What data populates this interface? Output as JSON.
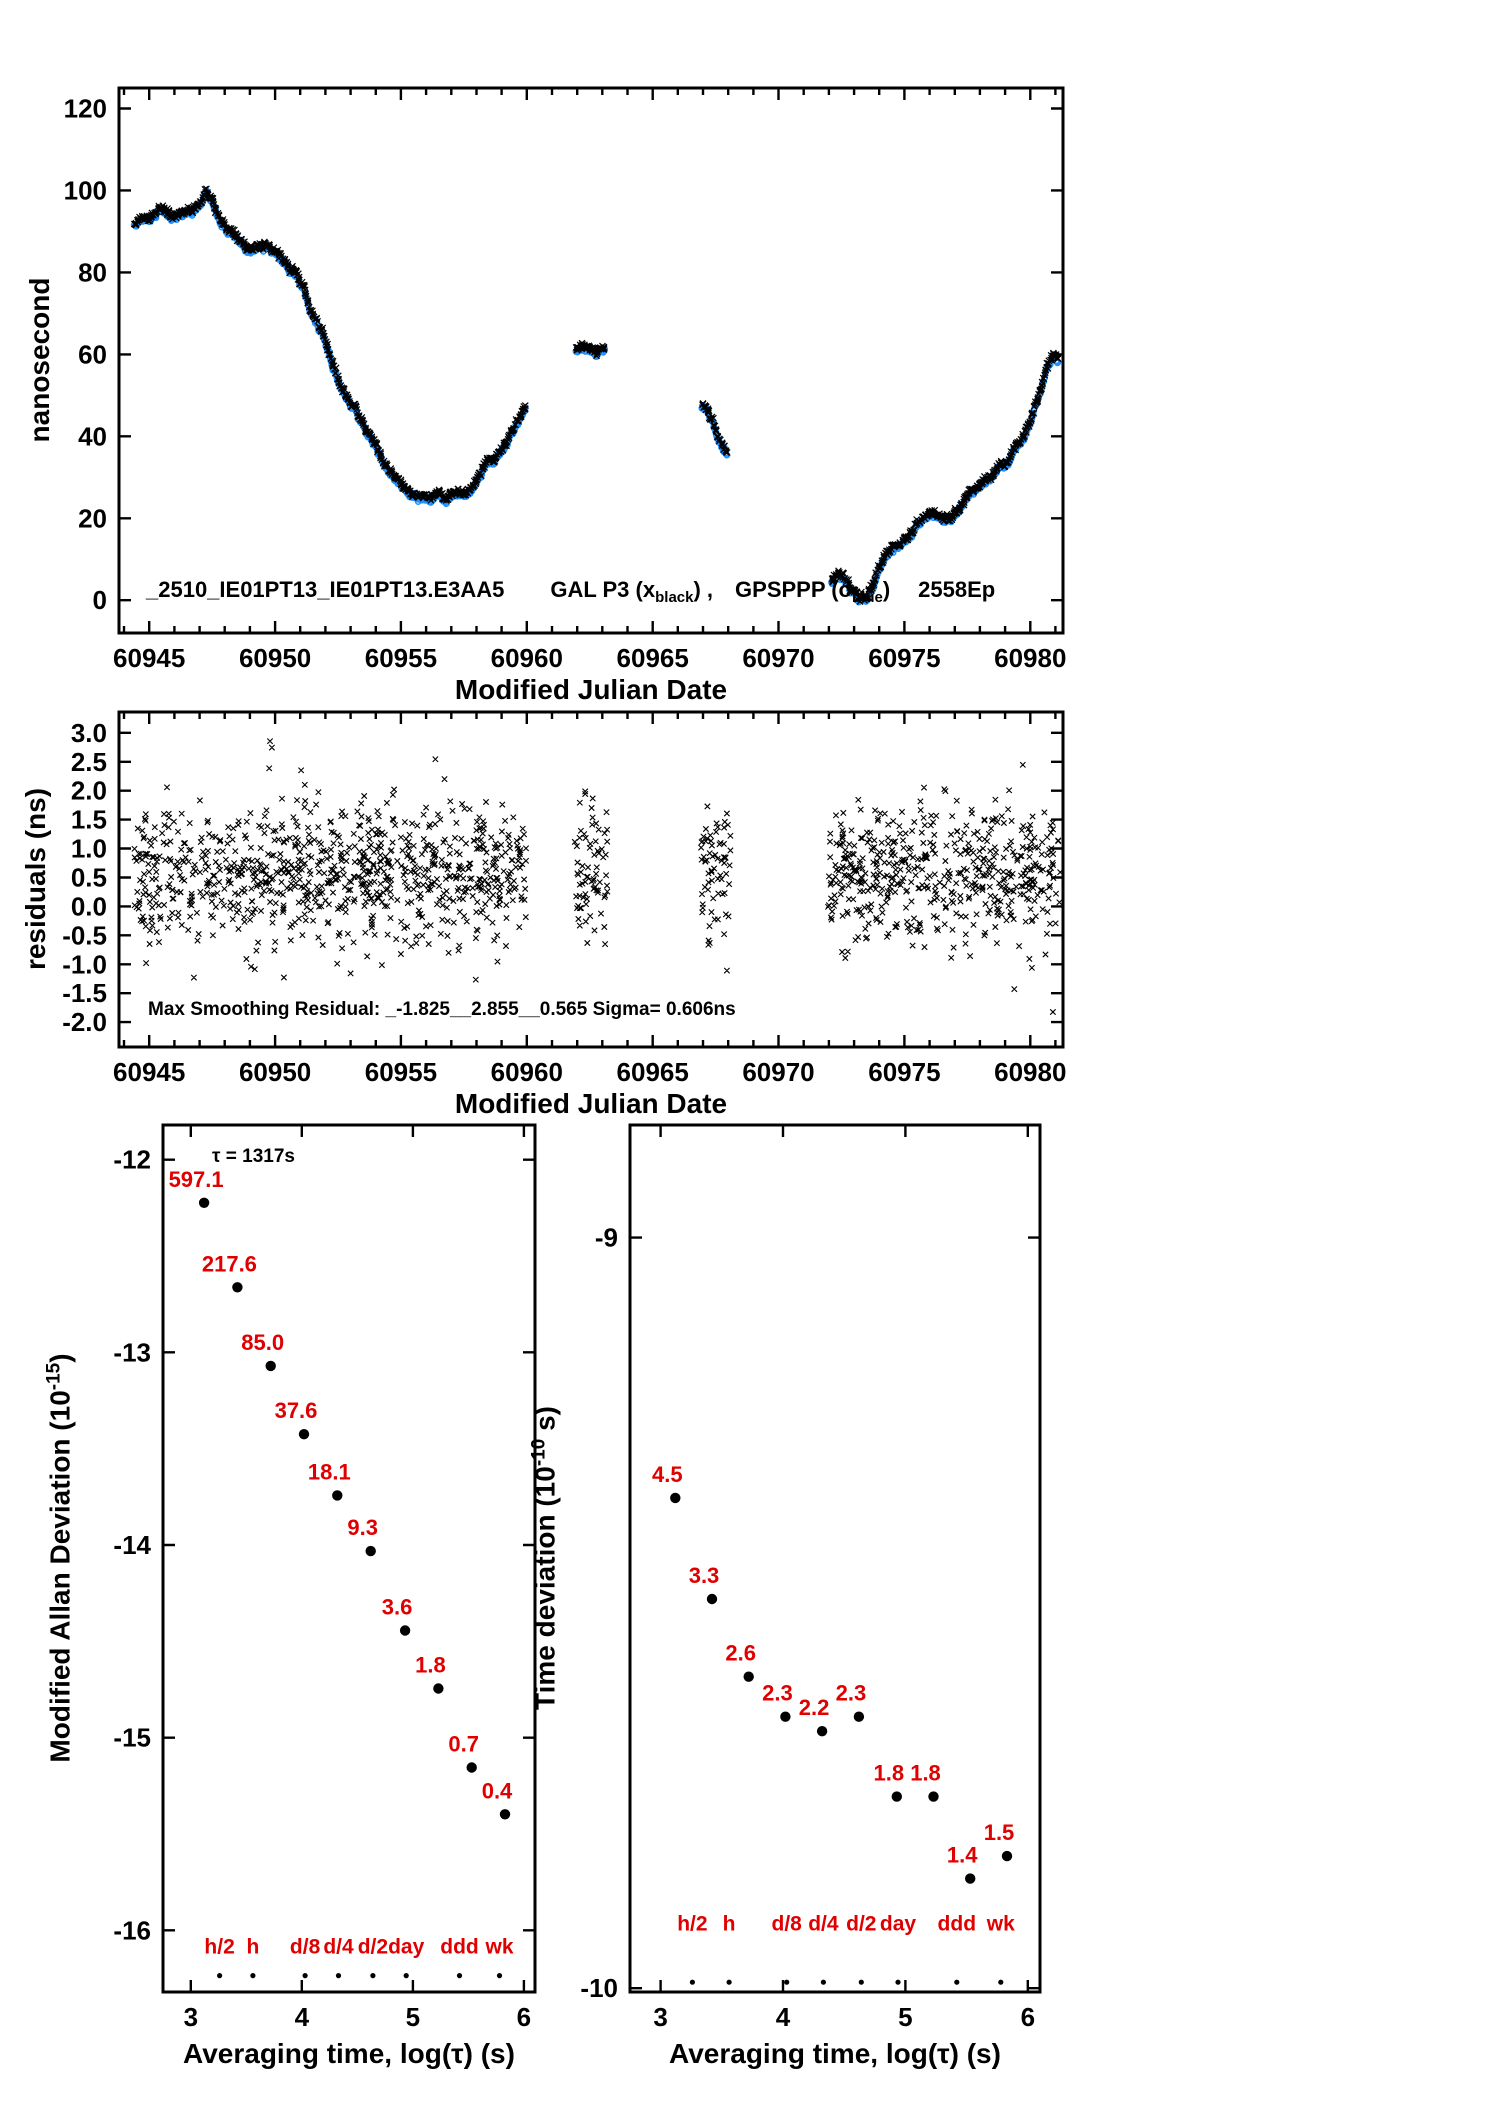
{
  "colors": {
    "ink": "#000000",
    "series_blue": "#1E90FF",
    "label_red": "#E00000",
    "background": "#FFFFFF"
  },
  "chart_data": [
    {
      "id": "time-series",
      "type": "scatter",
      "ylabel": "nanosecond",
      "xlabel": "Modified Julian Date",
      "xlim": [
        60943.8,
        60981.3
      ],
      "ylim": [
        -8,
        125
      ],
      "xticks": [
        60945,
        60950,
        60955,
        60960,
        60965,
        60970,
        60975,
        60980
      ],
      "yticks": [
        0,
        20,
        40,
        60,
        80,
        100,
        120
      ],
      "title": {
        "id": "_2510_IE01PT13_IE01PT13.E3AA5",
        "sys1_pre": "GAL P3 (x",
        "sys1_sub": "black",
        "sys1_post": ") ,",
        "sys2_pre": "GPSPPP (o",
        "sys2_sub": "blue",
        "sys2_post": ")",
        "epochs": "2558Ep"
      },
      "series": [
        {
          "name": "GAL P3",
          "marker": "x",
          "color": "#000000"
        },
        {
          "name": "GPSPPP",
          "marker": "o",
          "color": "#1E90FF"
        }
      ],
      "segments": [
        {
          "anchors": [
            [
              60944.4,
              92
            ],
            [
              60945,
              93
            ],
            [
              60945.5,
              95.5
            ],
            [
              60945.8,
              94
            ],
            [
              60946.2,
              94.5
            ],
            [
              60946.6,
              95
            ],
            [
              60947,
              96
            ],
            [
              60947.25,
              99
            ],
            [
              60947.5,
              97
            ],
            [
              60947.8,
              93
            ],
            [
              60948.2,
              90
            ],
            [
              60948.6,
              87.5
            ],
            [
              60949,
              85.5
            ],
            [
              60949.4,
              86.5
            ],
            [
              60949.8,
              85.5
            ],
            [
              60950.2,
              84
            ],
            [
              60950.6,
              80.5
            ],
            [
              60950.9,
              79
            ],
            [
              60951.1,
              77
            ],
            [
              60951.4,
              71
            ],
            [
              60951.7,
              67
            ],
            [
              60952,
              63
            ],
            [
              60952.3,
              57
            ],
            [
              60952.6,
              52
            ],
            [
              60952.9,
              49
            ],
            [
              60953.2,
              46
            ],
            [
              60953.6,
              42
            ],
            [
              60954,
              37.5
            ],
            [
              60954.4,
              33
            ],
            [
              60954.8,
              30
            ],
            [
              60955.2,
              27
            ],
            [
              60955.6,
              25.5
            ],
            [
              60956,
              24.5
            ],
            [
              60956.4,
              25.5
            ],
            [
              60956.8,
              24.5
            ],
            [
              60957.2,
              26
            ],
            [
              60957.6,
              25.5
            ],
            [
              60958,
              28.5
            ],
            [
              60958.4,
              33.5
            ],
            [
              60958.8,
              35
            ],
            [
              60959.2,
              38.5
            ],
            [
              60959.6,
              43
            ],
            [
              60959.95,
              47
            ]
          ]
        },
        {
          "anchors": [
            [
              60961.95,
              60.5
            ],
            [
              60962.2,
              62
            ],
            [
              60962.5,
              61
            ],
            [
              60962.8,
              60
            ],
            [
              60963.1,
              61.5
            ]
          ]
        },
        {
          "anchors": [
            [
              60966.95,
              47
            ],
            [
              60967.3,
              44.5
            ],
            [
              60967.6,
              40
            ],
            [
              60967.95,
              35.5
            ]
          ]
        },
        {
          "anchors": [
            [
              60972.1,
              4.5
            ],
            [
              60972.35,
              6.5
            ],
            [
              60972.6,
              5
            ],
            [
              60972.9,
              2
            ],
            [
              60973.2,
              0.5
            ],
            [
              60973.5,
              1
            ],
            [
              60973.8,
              4
            ],
            [
              60974.1,
              9
            ],
            [
              60974.4,
              12.5
            ],
            [
              60974.8,
              14
            ],
            [
              60975.2,
              16
            ],
            [
              60975.5,
              18.5
            ],
            [
              60975.8,
              20.5
            ],
            [
              60976.1,
              21
            ],
            [
              60976.4,
              20
            ],
            [
              60976.8,
              19.5
            ],
            [
              60977.1,
              22
            ],
            [
              60977.5,
              25.5
            ],
            [
              60977.9,
              27.5
            ],
            [
              60978.2,
              29
            ],
            [
              60978.6,
              31
            ],
            [
              60979,
              33.5
            ],
            [
              60979.4,
              36.5
            ],
            [
              60979.8,
              40.5
            ],
            [
              60980.1,
              45
            ],
            [
              60980.4,
              51
            ],
            [
              60980.7,
              57
            ],
            [
              60980.9,
              60
            ],
            [
              60981.1,
              58.5
            ]
          ]
        }
      ]
    },
    {
      "id": "residuals",
      "type": "scatter",
      "ylabel": "residuals (ns)",
      "xlabel": "Modified Julian Date",
      "xlim": [
        60943.8,
        60981.3
      ],
      "ylim": [
        -2.43,
        3.36
      ],
      "xticks": [
        60945,
        60950,
        60955,
        60960,
        60965,
        60970,
        60975,
        60980
      ],
      "ytick_values": [
        3,
        2.5,
        2,
        1.5,
        1,
        0.5,
        0,
        -0.5,
        -1,
        -1.5,
        -2
      ],
      "ytick_labels": [
        "3.0",
        "2.5",
        "2.0",
        "1.5",
        "1.0",
        "0.5",
        "0.0",
        "-0.5",
        "-1.0",
        "-1.5",
        "-2.0"
      ],
      "stats_text": "Max Smoothing Residual: _-1.825__2.855__0.565  Sigma= 0.606ns",
      "stats": {
        "min": -1.825,
        "max": 2.855,
        "mean": 0.565,
        "sigma_ns": 0.606
      },
      "scatter_segments": [
        [
          60944.4,
          60960.0
        ],
        [
          60961.9,
          60963.2
        ],
        [
          60966.9,
          60968.1
        ],
        [
          60971.9,
          60981.2
        ]
      ],
      "points_per_day": 58
    },
    {
      "id": "mdev",
      "type": "scatter",
      "ylabel_base": "Modified Allan Deviation (10",
      "ylabel_sup": "-15",
      "ylabel_close": ")",
      "xlabel": "Averaging time, log(τ) (s)",
      "tau_note": "τ = 1317s",
      "xlim": [
        2.75,
        6.1
      ],
      "ylim": [
        -16.32,
        -11.82
      ],
      "xticks": [
        3,
        4,
        5,
        6
      ],
      "yticks": [
        -12,
        -13,
        -14,
        -15,
        -16
      ],
      "unit_exponent": -15,
      "x": [
        3.12,
        3.42,
        3.72,
        4.02,
        4.32,
        4.62,
        4.93,
        5.23,
        5.53,
        5.83
      ],
      "values": [
        597.1,
        217.6,
        85.0,
        37.6,
        18.1,
        9.3,
        3.6,
        1.8,
        0.7,
        0.4
      ],
      "value_labels": [
        "597.1",
        "217.6",
        "85.0",
        "37.6",
        "18.1",
        "9.3",
        "3.6",
        "1.8",
        "0.7",
        "0.4"
      ],
      "categories": {
        "labels": [
          "h/2",
          "h",
          "d/8",
          "d/4",
          "d/2",
          "day",
          "ddd",
          "wk"
        ],
        "x": [
          3.26,
          3.56,
          4.03,
          4.33,
          4.64,
          4.94,
          5.42,
          5.78
        ],
        "label_y": -16.12,
        "dot_y": -16.235
      }
    },
    {
      "id": "tdev",
      "type": "scatter",
      "ylabel_base": "Time deviation (10",
      "ylabel_sup": "-10",
      "ylabel_close": " s)",
      "xlabel": "Averaging time, log(τ) (s)",
      "xlim": [
        2.75,
        6.1
      ],
      "ylim": [
        -10.005,
        -8.85
      ],
      "xticks": [
        3,
        4,
        5,
        6
      ],
      "yticks": [
        -9,
        -10
      ],
      "unit_exponent": -10,
      "x": [
        3.12,
        3.42,
        3.72,
        4.02,
        4.32,
        4.62,
        4.93,
        5.23,
        5.53,
        5.83
      ],
      "values": [
        4.5,
        3.3,
        2.6,
        2.3,
        2.2,
        2.3,
        1.8,
        1.8,
        1.4,
        1.5
      ],
      "value_labels": [
        "4.5",
        "3.3",
        "2.6",
        "2.3",
        "2.2",
        "2.3",
        "1.8",
        "1.8",
        "1.4",
        "1.5"
      ],
      "categories": {
        "labels": [
          "h/2",
          "h",
          "d/8",
          "d/4",
          "d/2",
          "day",
          "ddd",
          "wk"
        ],
        "x": [
          3.26,
          3.56,
          4.03,
          4.33,
          4.64,
          4.94,
          5.42,
          5.78
        ],
        "label_y": -9.923,
        "dot_y": -9.992
      }
    }
  ]
}
